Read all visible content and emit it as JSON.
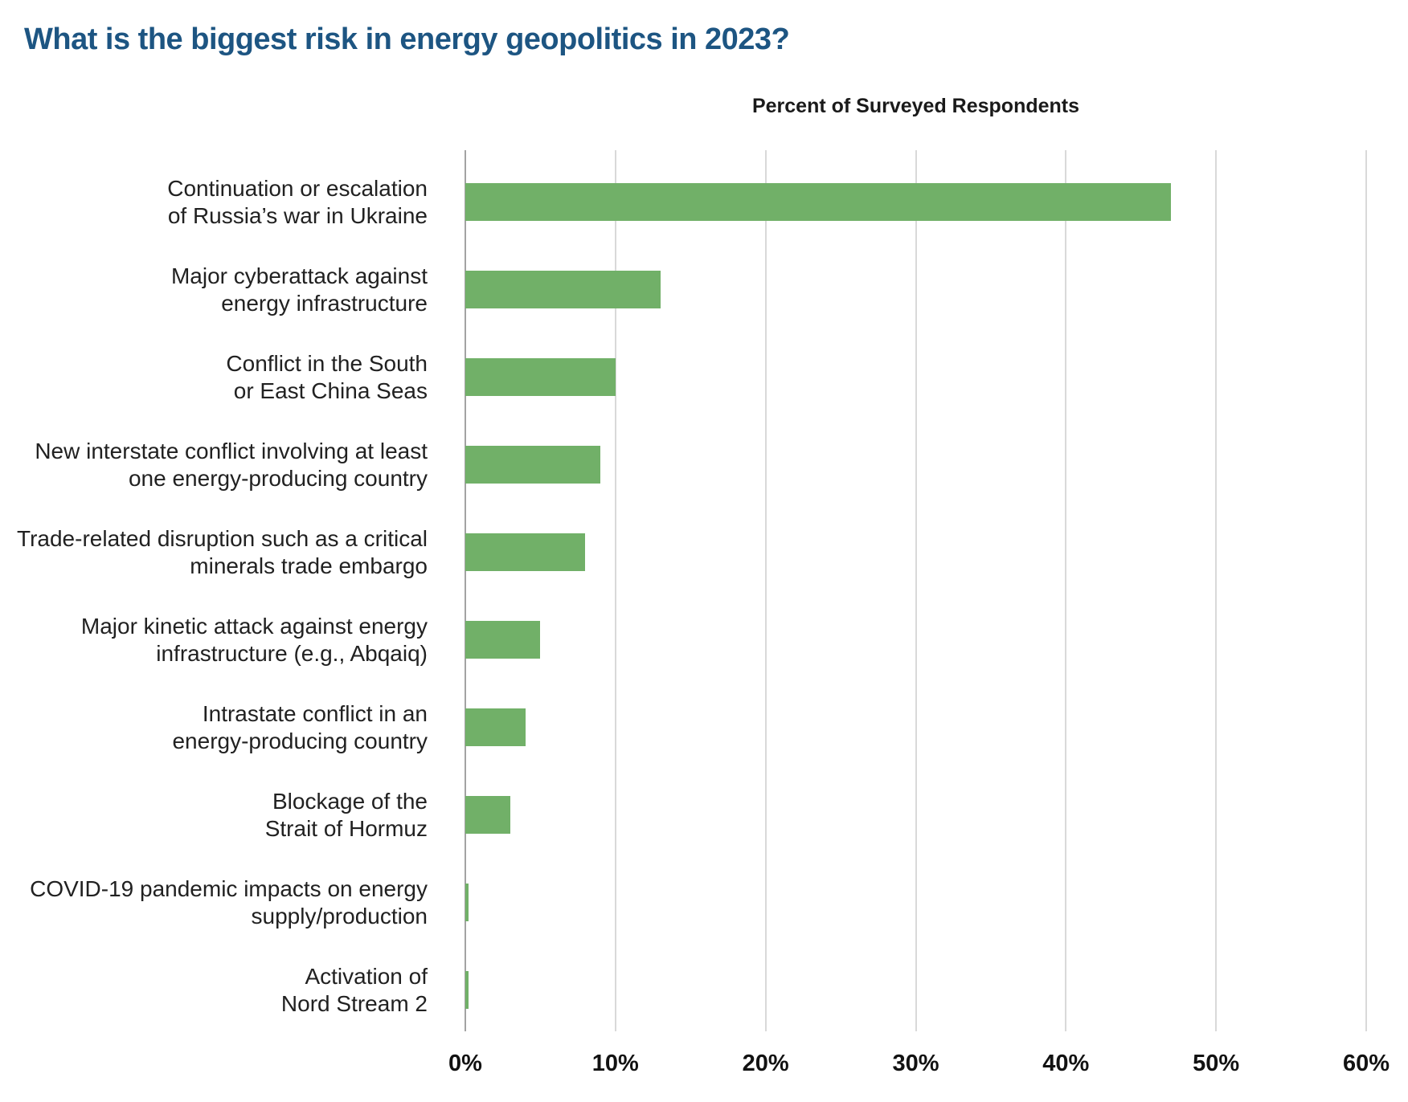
{
  "page": {
    "title": "What is the biggest risk in energy geopolitics in 2023?"
  },
  "chart_data": {
    "type": "bar",
    "orientation": "horizontal",
    "title": "What is the biggest risk in energy geopolitics in 2023?",
    "axis_title": "Percent of Surveyed Respondents",
    "xlabel": "Percent of Surveyed Respondents",
    "ylabel": "",
    "xlim": [
      0,
      60
    ],
    "x_ticks": [
      0,
      10,
      20,
      30,
      40,
      50,
      60
    ],
    "x_tick_labels": [
      "0%",
      "10%",
      "20%",
      "30%",
      "40%",
      "50%",
      "60%"
    ],
    "grid": "vertical gridlines on, no horizontal axis line",
    "legend": "none",
    "categories": [
      "Continuation or escalation of Russia’s war in Ukraine",
      "Major cyberattack against energy infrastructure",
      "Conflict in the South or East China Seas",
      "New interstate conflict involving at least one energy-producing country",
      "Trade-related disruption such as a critical minerals trade embargo",
      "Major kinetic attack against energy infrastructure (e.g., Abqaiq)",
      "Intrastate conflict in an energy-producing country",
      "Blockage of the Strait of Hormuz",
      "COVID-19 pandemic impacts on energy supply/production",
      "Activation of Nord Stream 2"
    ],
    "category_lines": [
      [
        "Continuation or escalation",
        "of Russia’s war in Ukraine"
      ],
      [
        "Major cyberattack against",
        "energy infrastructure"
      ],
      [
        "Conflict in the South",
        "or East China Seas"
      ],
      [
        "New interstate conflict involving at least",
        "one energy-producing country"
      ],
      [
        "Trade-related disruption such as a critical",
        "minerals trade embargo"
      ],
      [
        "Major kinetic attack against energy",
        "infrastructure (e.g., Abqaiq)"
      ],
      [
        "Intrastate conflict in an",
        "energy-producing country"
      ],
      [
        "Blockage of the",
        "Strait of Hormuz"
      ],
      [
        "COVID-19 pandemic impacts on energy",
        "supply/production"
      ],
      [
        "Activation of",
        "Nord Stream 2"
      ]
    ],
    "values": [
      47,
      13,
      10,
      9,
      8,
      5,
      4,
      3,
      0.2,
      0.2
    ],
    "colors": {
      "bar": "#71B068",
      "title": "#1D5582",
      "gridline": "#D9D9D9",
      "zero_axis": "#A3A3A3",
      "label_text": "#212121",
      "tick_text": "#121212"
    }
  }
}
